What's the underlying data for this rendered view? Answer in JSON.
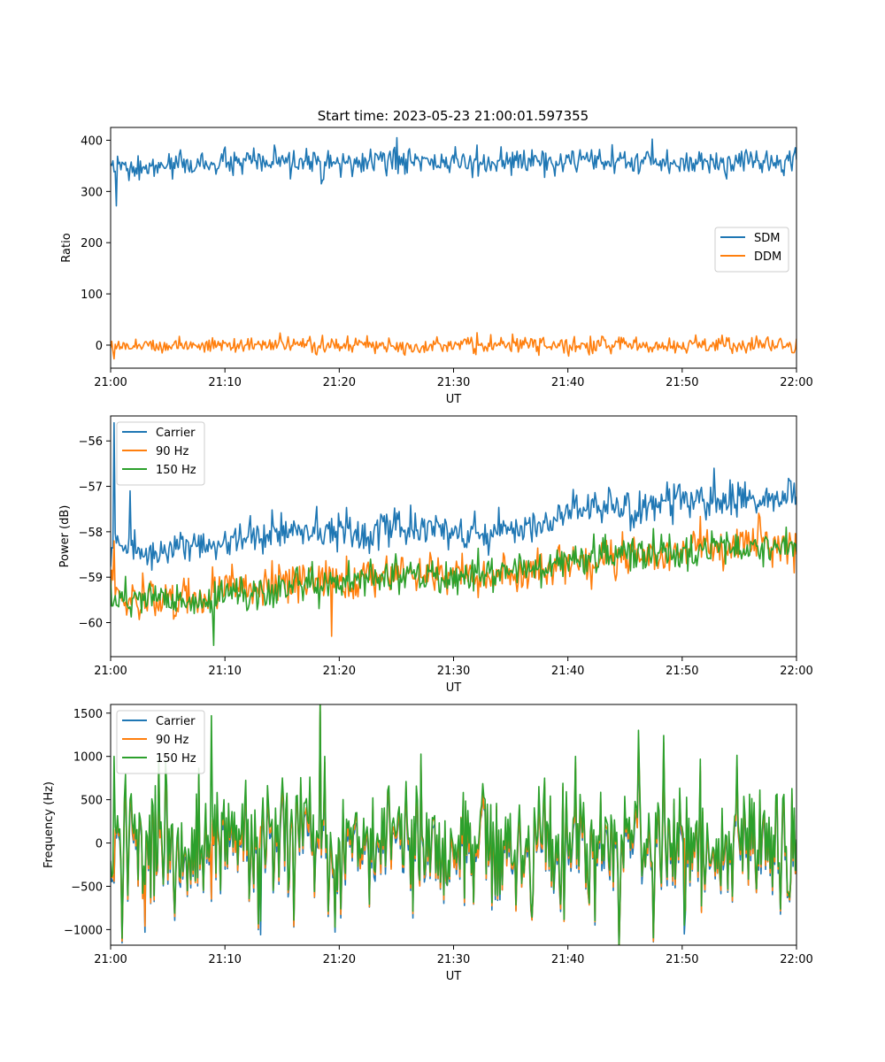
{
  "figure": {
    "title": "Start time: 2023-05-23 21:00:01.597355"
  },
  "colors": {
    "blue": "#1f77b4",
    "orange": "#ff7f0e",
    "green": "#2ca02c"
  },
  "chart_data": [
    {
      "type": "line",
      "title": "Start time: 2023-05-23 21:00:01.597355",
      "xlabel": "UT",
      "ylabel": "Ratio",
      "x_ticks": [
        "21:00",
        "21:10",
        "21:20",
        "21:30",
        "21:40",
        "21:50",
        "22:00"
      ],
      "xlim": [
        "21:00",
        "22:00"
      ],
      "ylim": [
        -45,
        425
      ],
      "y_ticks": [
        0,
        100,
        200,
        300,
        400
      ],
      "legend": "center-right",
      "x": [
        "21:00",
        "21:02",
        "21:04",
        "21:06",
        "21:08",
        "21:10",
        "21:12",
        "21:14",
        "21:16",
        "21:18",
        "21:20",
        "21:22",
        "21:24",
        "21:26",
        "21:28",
        "21:30",
        "21:32",
        "21:34",
        "21:36",
        "21:38",
        "21:40",
        "21:42",
        "21:44",
        "21:46",
        "21:48",
        "21:50",
        "21:52",
        "21:54",
        "21:56",
        "21:58",
        "22:00"
      ],
      "series": [
        {
          "name": "SDM",
          "color": "blue",
          "mean": [
            352,
            340,
            348,
            352,
            354,
            355,
            356,
            354,
            358,
            355,
            352,
            356,
            358,
            360,
            357,
            356,
            355,
            357,
            356,
            358,
            357,
            356,
            358,
            357,
            358,
            356,
            357,
            358,
            359,
            358,
            358
          ],
          "amp": 22,
          "spikes": [
            {
              "x": "21:00:30",
              "y": 272
            },
            {
              "x": "21:25:00",
              "y": 405
            }
          ]
        },
        {
          "name": "DDM",
          "color": "orange",
          "mean": [
            0,
            0,
            0,
            0,
            0,
            0,
            0,
            0,
            0,
            0,
            0,
            0,
            0,
            0,
            0,
            0,
            0,
            0,
            0,
            0,
            0,
            0,
            0,
            0,
            0,
            0,
            0,
            0,
            0,
            0,
            0
          ],
          "amp": 14,
          "spikes": []
        }
      ]
    },
    {
      "type": "line",
      "xlabel": "UT",
      "ylabel": "Power (dB)",
      "x_ticks": [
        "21:00",
        "21:10",
        "21:20",
        "21:30",
        "21:40",
        "21:50",
        "22:00"
      ],
      "xlim": [
        "21:00",
        "22:00"
      ],
      "ylim": [
        -60.75,
        -55.45
      ],
      "y_ticks": [
        -60,
        -59,
        -58,
        -57,
        -56
      ],
      "legend": "top-left",
      "x": [
        "21:00",
        "21:02",
        "21:04",
        "21:06",
        "21:08",
        "21:10",
        "21:12",
        "21:14",
        "21:16",
        "21:18",
        "21:20",
        "21:22",
        "21:24",
        "21:26",
        "21:28",
        "21:30",
        "21:32",
        "21:34",
        "21:36",
        "21:38",
        "21:40",
        "21:42",
        "21:44",
        "21:46",
        "21:48",
        "21:50",
        "21:52",
        "21:54",
        "21:56",
        "21:58",
        "22:00"
      ],
      "series": [
        {
          "name": "Carrier",
          "color": "blue",
          "mean": [
            -58.3,
            -58.4,
            -58.5,
            -58.3,
            -58.3,
            -58.2,
            -58.1,
            -58.0,
            -58.0,
            -58.1,
            -58.0,
            -58.0,
            -57.9,
            -57.9,
            -58.0,
            -58.0,
            -58.1,
            -58.0,
            -57.9,
            -57.8,
            -57.6,
            -57.5,
            -57.4,
            -57.5,
            -57.4,
            -57.3,
            -57.3,
            -57.3,
            -57.2,
            -57.3,
            -57.2
          ],
          "amp": 0.35,
          "spikes": [
            {
              "x": "21:00:20",
              "y": -55.6
            },
            {
              "x": "21:01:40",
              "y": -57.1
            },
            {
              "x": "21:52:50",
              "y": -56.6
            }
          ]
        },
        {
          "name": "90 Hz",
          "color": "orange",
          "mean": [
            -59.2,
            -59.6,
            -59.5,
            -59.4,
            -59.3,
            -59.2,
            -59.2,
            -59.2,
            -59.1,
            -59.0,
            -59.1,
            -59.0,
            -58.9,
            -58.9,
            -59.0,
            -58.9,
            -59.0,
            -59.0,
            -58.9,
            -58.8,
            -58.7,
            -58.6,
            -58.6,
            -58.5,
            -58.5,
            -58.4,
            -58.3,
            -58.3,
            -58.2,
            -58.3,
            -58.3
          ],
          "amp": 0.4,
          "spikes": [
            {
              "x": "21:00:20",
              "y": -58.2
            },
            {
              "x": "21:19:20",
              "y": -60.3
            }
          ]
        },
        {
          "name": "150 Hz",
          "color": "green",
          "mean": [
            -59.4,
            -59.5,
            -59.4,
            -59.5,
            -59.5,
            -59.4,
            -59.4,
            -59.3,
            -59.2,
            -59.1,
            -59.1,
            -59.0,
            -59.0,
            -59.0,
            -59.0,
            -59.0,
            -58.9,
            -58.9,
            -58.9,
            -58.8,
            -58.6,
            -58.6,
            -58.5,
            -58.5,
            -58.4,
            -58.5,
            -58.4,
            -58.3,
            -58.3,
            -58.4,
            -58.3
          ],
          "amp": 0.35,
          "spikes": [
            {
              "x": "21:09:00",
              "y": -60.5
            }
          ]
        }
      ]
    },
    {
      "type": "line",
      "xlabel": "UT",
      "ylabel": "Frequency (Hz)",
      "x_ticks": [
        "21:00",
        "21:10",
        "21:20",
        "21:30",
        "21:40",
        "21:50",
        "22:00"
      ],
      "xlim": [
        "21:00",
        "22:00"
      ],
      "ylim": [
        -1180,
        1600
      ],
      "y_ticks": [
        -1000,
        -500,
        0,
        500,
        1000,
        1500
      ],
      "legend": "top-left",
      "x": [
        "21:00",
        "21:02",
        "21:04",
        "21:06",
        "21:08",
        "21:10",
        "21:12",
        "21:14",
        "21:16",
        "21:18",
        "21:20",
        "21:22",
        "21:24",
        "21:26",
        "21:28",
        "21:30",
        "21:32",
        "21:34",
        "21:36",
        "21:38",
        "21:40",
        "21:42",
        "21:44",
        "21:46",
        "21:48",
        "21:50",
        "21:52",
        "21:54",
        "21:56",
        "21:58",
        "22:00"
      ],
      "series": [
        {
          "name": "Carrier",
          "color": "blue",
          "offset": -60,
          "amp": 380,
          "spikes": [
            {
              "x": "21:03:00",
              "y": -1030
            },
            {
              "x": "21:13:10",
              "y": -1060
            },
            {
              "x": "21:50:10",
              "y": -1050
            }
          ]
        },
        {
          "name": "90 Hz",
          "color": "orange",
          "offset": -20,
          "amp": 390,
          "spikes": [
            {
              "x": "21:03:00",
              "y": -960
            }
          ]
        },
        {
          "name": "150 Hz",
          "color": "green",
          "offset": 40,
          "amp": 400,
          "spikes": [
            {
              "x": "21:00:20",
              "y": 1000
            },
            {
              "x": "21:08:50",
              "y": 1470
            },
            {
              "x": "21:13:10",
              "y": -900
            },
            {
              "x": "21:50:10",
              "y": -950
            }
          ]
        }
      ]
    }
  ]
}
